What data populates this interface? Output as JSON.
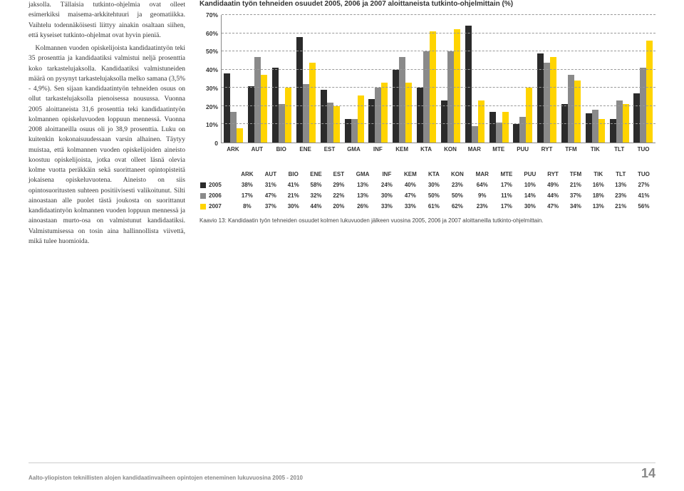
{
  "left_text": {
    "p1": "jaksolla. Tällaisia tutkinto-ohjelmia ovat olleet esimerkiksi maisema-arkkitehtuuri ja geomatiikka. Vaihtelu todennäköisesti liittyy ainakin osaltaan siihen, että kyseiset tutkinto-ohjelmat ovat hyvin pieniä.",
    "p2": "Kolmannen vuoden opiskelijoista kandidaatintyön teki 35 prosenttia ja kandidaatiksi valmistui neljä prosenttia koko tarkastelujaksolla. Kandidaatiksi valmistuneiden määrä on pysynyt tarkastelujaksolla melko samana (3,5% - 4,9%). Sen sijaan kandidaatintyön tehneiden osuus on ollut tarkastelujaksolla pienoisessa nousussa. Vuonna 2005 aloittaneista 31,6 prosenttia teki kandidaatintyön kolmannen opiskeluvuoden loppuun mennessä. Vuonna 2008 aloittaneilla osuus oli jo 38,9 prosenttia. Luku on kuitenkin kokonaisuudessaan varsin alhainen. Täytyy muistaa, että kolmannen vuoden opiskelijoiden aineisto koostuu opiskelijoista, jotka ovat olleet läsnä olevia kolme vuotta peräkkäin sekä suorittaneet opintopisteitä jokaisena opiskeluvuotena. Aineisto on siis opintosuoritusten suhteen positiivisesti valikoitunut. Silti ainoastaan alle puolet tästä joukosta on suorittanut kandidaatintyön kolmannen vuoden loppuun mennessä ja ainoastaan murto-osa on valmistunut kandidaatiksi. Valmistumisessa on tosin aina hallinnollista viivettä, mikä tulee huomioida."
  },
  "chart": {
    "title": "Kandidaatin työn tehneiden osuudet 2005, 2006 ja 2007 aloittaneista tutkinto-ohjelmittain (%)",
    "type": "bar",
    "yticks": [
      "0",
      "10%",
      "20%",
      "30%",
      "40%",
      "50%",
      "60%",
      "70%"
    ],
    "ymax": 70,
    "categories": [
      "ARK",
      "AUT",
      "BIO",
      "ENE",
      "EST",
      "GMA",
      "INF",
      "KEM",
      "KTA",
      "KON",
      "MAR",
      "MTE",
      "PUU",
      "RYT",
      "TFM",
      "TIK",
      "TLT",
      "TUO"
    ],
    "series": [
      {
        "name": "2005",
        "color": "#2b2b2b",
        "values": [
          38,
          31,
          41,
          58,
          29,
          13,
          24,
          40,
          30,
          23,
          64,
          17,
          10,
          49,
          21,
          16,
          13,
          27
        ]
      },
      {
        "name": "2006",
        "color": "#8a8a8a",
        "values": [
          17,
          47,
          21,
          32,
          22,
          13,
          30,
          47,
          50,
          50,
          9,
          11,
          14,
          44,
          37,
          18,
          23,
          41
        ]
      },
      {
        "name": "2007",
        "color": "#ffd400",
        "values": [
          8,
          37,
          30,
          44,
          20,
          26,
          33,
          33,
          61,
          62,
          23,
          17,
          30,
          47,
          34,
          13,
          21,
          56
        ]
      }
    ],
    "caption": "Kaavio 13: Kandidaatin työn tehneiden osuudet kolmen lukuvuoden jälkeen vuosina 2005, 2006 ja 2007 aloittaneilla tutkinto-ohjelmittain."
  },
  "footer": {
    "text": "Aalto-yliopiston teknillisten alojen kandidaatinvaiheen opintojen eteneminen lukuvuosina 2005 - 2010",
    "page": "14"
  },
  "colors": {
    "background": "#ffffff",
    "grid": "#999999",
    "axis": "#888888"
  }
}
